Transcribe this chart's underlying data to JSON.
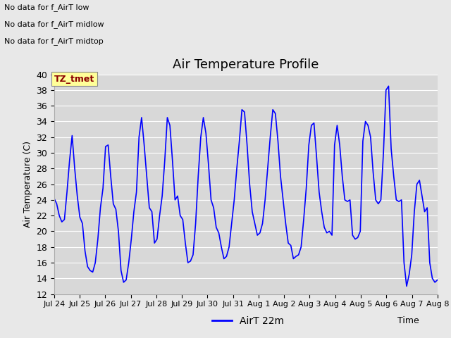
{
  "title": "Air Temperature Profile",
  "xlabel": "Time",
  "ylabel": "Air Temperature (C)",
  "ylim": [
    12,
    40
  ],
  "yticks": [
    12,
    14,
    16,
    18,
    20,
    22,
    24,
    26,
    28,
    30,
    32,
    34,
    36,
    38,
    40
  ],
  "line_color": "blue",
  "line_label": "AirT 22m",
  "background_color": "#e8e8e8",
  "plot_bg_color": "#d8d8d8",
  "annotations_top_left": [
    "No data for f_AirT low",
    "No data for f_AirT midlow",
    "No data for f_AirT midtop"
  ],
  "tz_label": "TZ_tmet",
  "x_tick_labels": [
    "Jul 24",
    "Jul 25",
    "Jul 26",
    "Jul 27",
    "Jul 28",
    "Jul 29",
    "Jul 30",
    "Jul 31",
    "Aug 1",
    "Aug 2",
    "Aug 3",
    "Aug 4",
    "Aug 5",
    "Aug 6",
    "Aug 7",
    "Aug 8"
  ],
  "temperature_data": [
    24.2,
    23.5,
    22.0,
    21.2,
    21.5,
    25.0,
    29.0,
    32.2,
    28.0,
    24.5,
    21.8,
    21.0,
    17.5,
    15.5,
    15.0,
    14.8,
    16.0,
    19.0,
    23.0,
    25.5,
    30.8,
    31.0,
    27.0,
    23.5,
    22.8,
    20.0,
    15.0,
    13.5,
    13.8,
    16.0,
    19.0,
    22.5,
    25.0,
    32.0,
    34.5,
    31.0,
    27.0,
    23.0,
    22.5,
    18.5,
    19.0,
    22.0,
    24.5,
    29.0,
    34.5,
    33.5,
    29.0,
    24.0,
    24.5,
    22.0,
    21.5,
    18.5,
    16.0,
    16.2,
    17.0,
    21.0,
    27.0,
    32.0,
    34.5,
    32.5,
    28.5,
    24.0,
    23.0,
    20.5,
    19.8,
    18.0,
    16.5,
    16.8,
    18.0,
    21.0,
    24.0,
    28.0,
    31.5,
    35.5,
    35.2,
    31.0,
    26.0,
    22.5,
    21.0,
    19.5,
    19.8,
    21.0,
    24.0,
    28.0,
    32.0,
    35.5,
    35.0,
    31.5,
    27.0,
    24.0,
    21.0,
    18.5,
    18.2,
    16.5,
    16.8,
    17.0,
    18.0,
    21.5,
    25.5,
    31.0,
    33.5,
    33.8,
    29.5,
    25.0,
    22.5,
    20.5,
    19.8,
    20.0,
    19.5,
    31.0,
    33.5,
    31.0,
    27.0,
    24.0,
    23.8,
    24.0,
    19.5,
    19.0,
    19.2,
    20.0,
    31.5,
    34.0,
    33.5,
    32.0,
    27.5,
    24.0,
    23.5,
    24.0,
    30.0,
    38.0,
    38.5,
    30.5,
    27.0,
    24.0,
    23.8,
    24.0,
    16.0,
    13.0,
    14.5,
    17.0,
    22.5,
    26.0,
    26.5,
    24.5,
    22.5,
    23.0,
    16.0,
    14.0,
    13.5,
    13.8
  ]
}
